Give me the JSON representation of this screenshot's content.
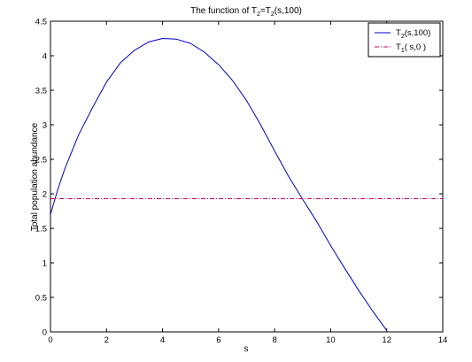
{
  "chart_data": {
    "type": "line",
    "title": {
      "prefix": "The function of T",
      "sub1": "2",
      "eq": "=T",
      "sub2": "2",
      "suffix": "(s,100)"
    },
    "xlabel": "s",
    "ylabel": "Total population abundance",
    "xlim": [
      0,
      14
    ],
    "ylim": [
      0,
      4.5
    ],
    "xticks": [
      "0",
      "2",
      "4",
      "6",
      "8",
      "10",
      "12",
      "14"
    ],
    "yticks": [
      "0",
      "0.5",
      "1",
      "1.5",
      "2",
      "2.5",
      "3",
      "3.5",
      "4",
      "4.5"
    ],
    "grid": false,
    "legend_position": "top-right",
    "series": [
      {
        "name": {
          "base": "T",
          "sub": "2",
          "args": "(s,100)"
        },
        "color": "#0000cc",
        "line_style": "solid",
        "x": [
          0,
          0.25,
          0.5,
          1,
          1.5,
          2,
          2.5,
          3,
          3.5,
          4,
          4.5,
          5,
          5.5,
          6,
          6.5,
          7,
          7.5,
          8,
          8.5,
          9,
          9.5,
          10,
          10.5,
          11,
          11.5,
          12
        ],
        "y": [
          1.7,
          2.05,
          2.35,
          2.85,
          3.25,
          3.62,
          3.9,
          4.08,
          4.2,
          4.25,
          4.24,
          4.18,
          4.05,
          3.87,
          3.64,
          3.35,
          3.0,
          2.62,
          2.25,
          1.92,
          1.6,
          1.25,
          0.92,
          0.6,
          0.3,
          0.02
        ]
      },
      {
        "name": {
          "base": "T",
          "sub": "1",
          "args": "( s,0 )"
        },
        "color": "#cc0066",
        "line_style": "dash-dot",
        "x": [
          0,
          14
        ],
        "y": [
          1.93,
          1.93
        ]
      }
    ]
  }
}
